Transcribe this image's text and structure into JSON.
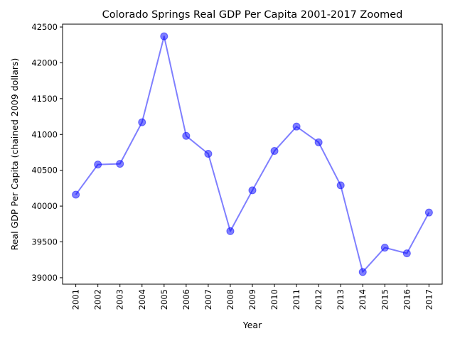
{
  "chart_data": {
    "type": "line",
    "title": "Colorado Springs Real GDP Per Capita 2001-2017 Zoomed",
    "xlabel": "Year",
    "ylabel": "Real GDP Per Capita (chained 2009 dollars)",
    "x": [
      "2001",
      "2002",
      "2003",
      "2004",
      "2005",
      "2006",
      "2007",
      "2008",
      "2009",
      "2010",
      "2011",
      "2012",
      "2013",
      "2014",
      "2015",
      "2016",
      "2017"
    ],
    "values": [
      40160,
      40580,
      40590,
      41170,
      42370,
      40980,
      40730,
      39650,
      40220,
      40770,
      41110,
      40890,
      40290,
      39080,
      39420,
      39340,
      39910
    ],
    "yticks": [
      39000,
      39500,
      40000,
      40500,
      41000,
      41500,
      42000,
      42500
    ],
    "ylim": [
      38910,
      42540
    ],
    "x_tick_rotation": "vertical",
    "grid": false,
    "legend": "none",
    "line_color": "#0000ff",
    "marker": "circle",
    "alpha": 0.5
  }
}
